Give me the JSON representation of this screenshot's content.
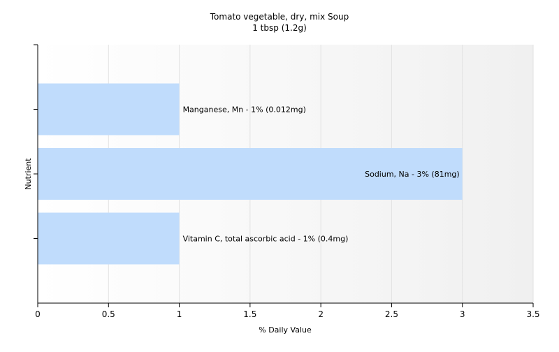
{
  "chart_data": {
    "type": "bar",
    "orientation": "horizontal",
    "title": "Tomato vegetable, dry, mix Soup",
    "subtitle": "1 tbsp (1.2g)",
    "xlabel": "% Daily Value",
    "ylabel": "Nutrient",
    "xlim": [
      0,
      3.5
    ],
    "xticks": [
      "0",
      "0.5",
      "1",
      "1.5",
      "2",
      "2.5",
      "3",
      "3.5"
    ],
    "grid": true,
    "bars": [
      {
        "label": "Manganese, Mn - 1% (0.012mg)",
        "value": 1
      },
      {
        "label": "Sodium, Na - 3% (81mg)",
        "value": 3
      },
      {
        "label": "Vitamin C, total ascorbic acid - 1% (0.4mg)",
        "value": 1
      }
    ],
    "bar_color": "#c0dcfc",
    "background_gradient": [
      "#ffffff",
      "#f0f0f0"
    ]
  }
}
